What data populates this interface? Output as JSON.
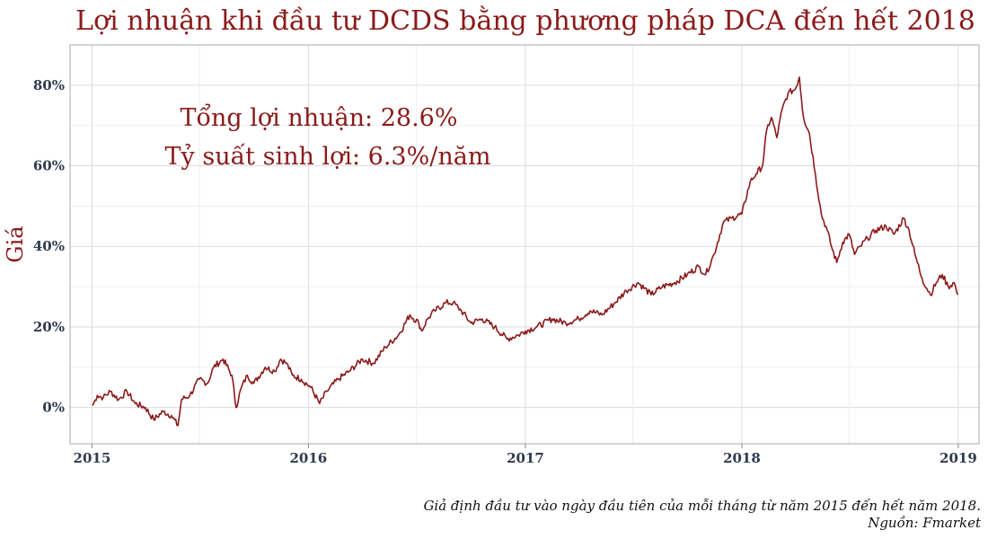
{
  "chart_data": {
    "type": "line",
    "title": "Lợi nhuận khi đầu tư DCDS bằng phương pháp DCA đến hết 2018",
    "ylabel": "Giá",
    "xlabel": "",
    "x_ticks": [
      "2015",
      "2016",
      "2017",
      "2018",
      "2019"
    ],
    "y_ticks": [
      "0%",
      "20%",
      "40%",
      "60%",
      "80%"
    ],
    "y_tick_values": [
      0,
      20,
      40,
      60,
      80
    ],
    "xlim": [
      "2014-11-25",
      "2019-02-05"
    ],
    "ylim": [
      -9,
      90
    ],
    "grid": true,
    "annotations": [
      "Tổng lợi nhuận: 28.6%",
      "Tỷ suất sinh lợi: 6.3%/năm"
    ],
    "caption": [
      "Giả định đầu tư vào ngày đầu tiên của mỗi tháng từ năm 2015 đến hết năm 2018.",
      "Nguồn: Fmarket"
    ],
    "series": [
      {
        "x": [
          "2015-01-02",
          "2015-01-10",
          "2015-01-20",
          "2015-02-01",
          "2015-02-15",
          "2015-03-01",
          "2015-03-15",
          "2015-04-01",
          "2015-04-15",
          "2015-05-01",
          "2015-05-15",
          "2015-05-26",
          "2015-06-01",
          "2015-06-15",
          "2015-07-01",
          "2015-07-15",
          "2015-07-25",
          "2015-08-10",
          "2015-08-25",
          "2015-09-01",
          "2015-09-10",
          "2015-09-20",
          "2015-10-01",
          "2015-10-20",
          "2015-11-05",
          "2015-11-15",
          "2015-11-25",
          "2015-12-05",
          "2015-12-20",
          "2016-01-05",
          "2016-01-20",
          "2016-02-01",
          "2016-02-20",
          "2016-03-10",
          "2016-04-01",
          "2016-04-20",
          "2016-05-10",
          "2016-06-01",
          "2016-06-20",
          "2016-07-05",
          "2016-07-10",
          "2016-07-20",
          "2016-08-01",
          "2016-08-20",
          "2016-09-01",
          "2016-09-15",
          "2016-10-01",
          "2016-10-20",
          "2016-11-10",
          "2016-12-01",
          "2016-12-20",
          "2017-01-01",
          "2017-01-20",
          "2017-02-15",
          "2017-03-10",
          "2017-04-01",
          "2017-04-20",
          "2017-05-10",
          "2017-06-01",
          "2017-06-20",
          "2017-07-10",
          "2017-08-01",
          "2017-08-20",
          "2017-09-10",
          "2017-10-01",
          "2017-10-20",
          "2017-11-01",
          "2017-11-15",
          "2017-12-01",
          "2017-12-15",
          "2018-01-01",
          "2018-01-15",
          "2018-01-25",
          "2018-02-05",
          "2018-02-12",
          "2018-02-20",
          "2018-03-01",
          "2018-03-10",
          "2018-03-20",
          "2018-04-01",
          "2018-04-08",
          "2018-04-15",
          "2018-04-25",
          "2018-05-05",
          "2018-05-15",
          "2018-05-25",
          "2018-06-01",
          "2018-06-10",
          "2018-06-20",
          "2018-07-01",
          "2018-07-10",
          "2018-07-20",
          "2018-08-01",
          "2018-08-15",
          "2018-09-01",
          "2018-09-15",
          "2018-10-01",
          "2018-10-10",
          "2018-10-20",
          "2018-11-01",
          "2018-11-15",
          "2018-11-25",
          "2018-12-05",
          "2018-12-15",
          "2018-12-25",
          "2018-12-31"
        ],
        "y": [
          0.5,
          3,
          2.5,
          4,
          2,
          4,
          1,
          0,
          -3,
          -1,
          -2,
          -4.5,
          2,
          3,
          7,
          6,
          10,
          12,
          8,
          0,
          5,
          8,
          6,
          10,
          9,
          12,
          11,
          8,
          7,
          5,
          1,
          4,
          7,
          9,
          12,
          11,
          15,
          18,
          23,
          21,
          19,
          22,
          24,
          26,
          26,
          24,
          21,
          22,
          20,
          17,
          18,
          19,
          20,
          22,
          21,
          22,
          24,
          23,
          26,
          29,
          31,
          28,
          30,
          31,
          33,
          35,
          33,
          38,
          46,
          47,
          48,
          56,
          58,
          60,
          69,
          72,
          67,
          74,
          78,
          79,
          82,
          72,
          68,
          58,
          48,
          44,
          40,
          36,
          41,
          43,
          38,
          40,
          42,
          44,
          45,
          43,
          47,
          44,
          38,
          32,
          28,
          31,
          33,
          30,
          31,
          28
        ]
      }
    ]
  }
}
